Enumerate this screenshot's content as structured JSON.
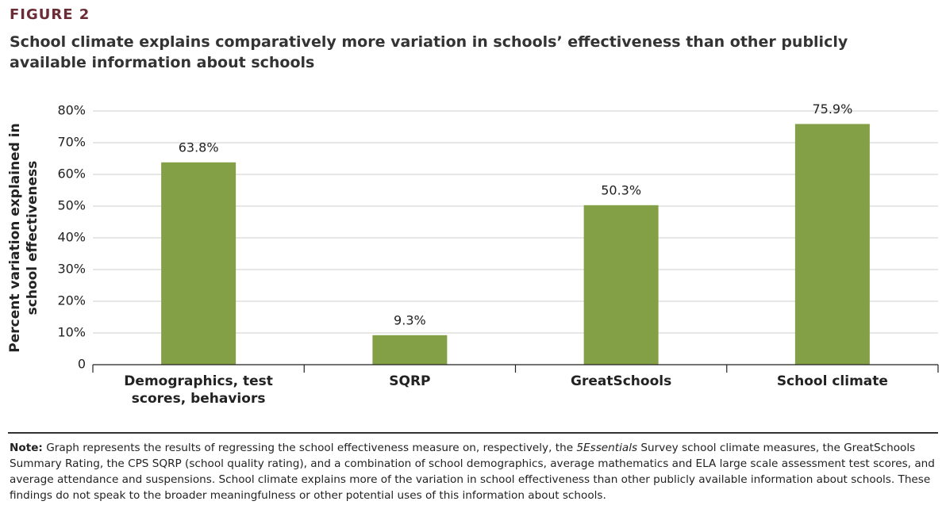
{
  "chart_data": {
    "type": "bar",
    "figure_label": "FIGURE 2",
    "title": "School climate explains comparatively more variation in schools’ effectiveness than other publicly available information about schools",
    "y_label": "Percent variation explained in school effectiveness",
    "categories": [
      "Demographics, test scores, behaviors",
      "SQRP",
      "GreatSchools",
      "School climate"
    ],
    "values": [
      63.8,
      9.3,
      50.3,
      75.9
    ],
    "value_labels": [
      "63.8%",
      "9.3%",
      "50.3%",
      "75.9%"
    ],
    "color": "#84a046",
    "ylim": [
      0,
      80
    ],
    "yticks": [
      0,
      {
        "value": 10,
        "label": "10%"
      },
      {
        "value": 20,
        "label": "20%"
      },
      {
        "value": 30,
        "label": "30%"
      },
      {
        "value": 40,
        "label": "40%"
      },
      {
        "value": 50,
        "label": "50%"
      },
      {
        "value": 60,
        "label": "60%"
      },
      {
        "value": 70,
        "label": "70%"
      },
      {
        "value": 80,
        "label": "80%"
      }
    ],
    "grid": true,
    "note": {
      "label": "Note:",
      "before": " Graph represents the results of regressing the school effectiveness measure on, respectively, the ",
      "italic": "5Essentials",
      "after": " Survey school climate measures, the GreatSchools Summary Rating, the CPS SQRP (school quality rating), and a combination of school demographics, average mathematics and ELA large scale assessment test scores, and average attendance and suspensions. School climate explains more of the variation in school effectiveness than other publicly available information about schools. These findings do not speak to the broader meaningfulness or other potential uses of this information about schools."
    }
  }
}
